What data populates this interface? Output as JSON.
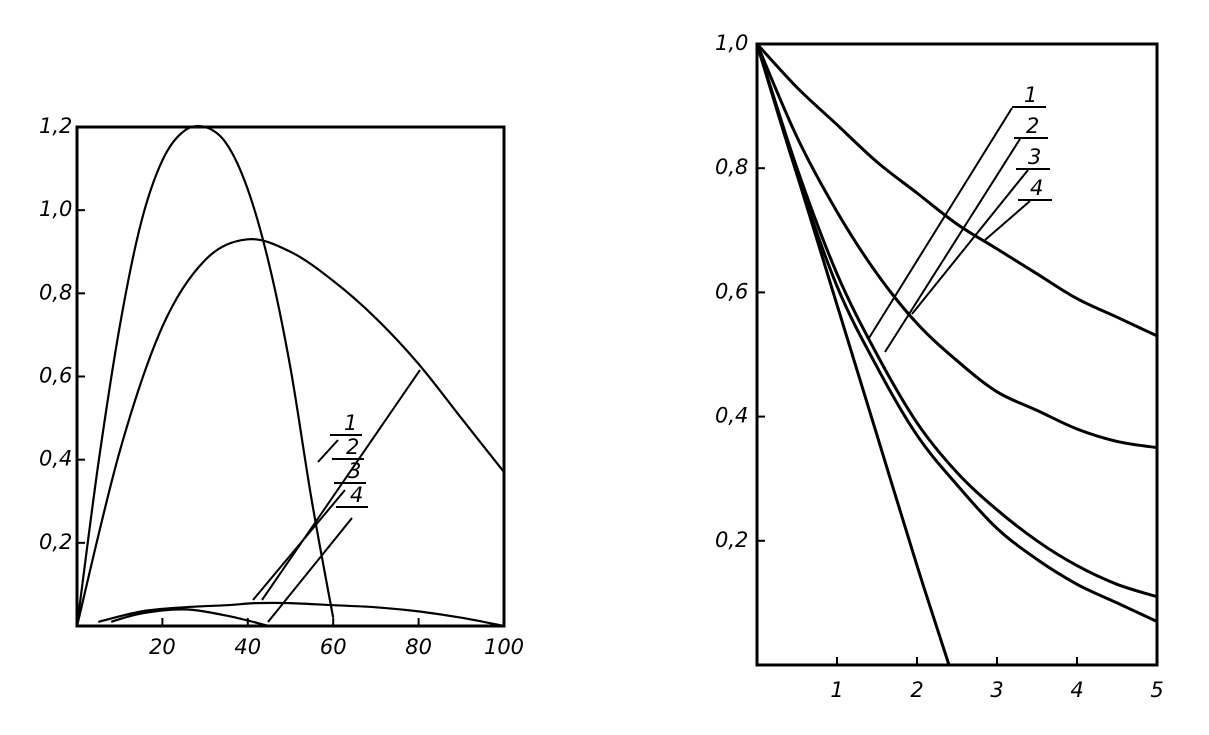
{
  "chart_data": [
    {
      "type": "line",
      "title": "",
      "xlabel": "",
      "ylabel": "",
      "xlim": [
        0,
        100
      ],
      "ylim": [
        0,
        1.2
      ],
      "x_ticks": [
        20,
        40,
        60,
        80,
        100
      ],
      "x_tick_labels": [
        "20",
        "40",
        "60",
        "80",
        "100"
      ],
      "y_ticks": [
        0.2,
        0.4,
        0.6,
        0.8,
        1.0,
        1.2
      ],
      "y_tick_labels": [
        "0,2",
        "0,4",
        "0,6",
        "0,8",
        "1,0",
        "1,2"
      ],
      "grid": false,
      "legend_labels": [
        "1",
        "2",
        "3",
        "4"
      ],
      "series": [
        {
          "x": [
            0,
            5,
            10,
            15,
            20,
            25,
            30,
            35,
            40,
            45,
            50,
            55,
            60
          ],
          "y": [
            0,
            0.39,
            0.72,
            0.97,
            1.12,
            1.19,
            1.2,
            1.16,
            1.05,
            0.87,
            0.62,
            0.3,
            0.02
          ]
        },
        {
          "x": [
            0,
            10,
            20,
            30,
            40,
            50,
            60,
            70,
            80,
            90,
            100
          ],
          "y": [
            0,
            0.42,
            0.72,
            0.88,
            0.93,
            0.9,
            0.83,
            0.74,
            0.63,
            0.5,
            0.37
          ]
        },
        {
          "x": [
            5,
            15,
            25,
            35,
            42,
            50,
            60,
            70,
            80,
            90,
            100
          ],
          "y": [
            0.01,
            0.035,
            0.045,
            0.05,
            0.055,
            0.055,
            0.05,
            0.045,
            0.035,
            0.02,
            0
          ]
        },
        {
          "x": [
            8,
            15,
            25,
            35,
            45
          ],
          "y": [
            0.01,
            0.03,
            0.04,
            0.025,
            0
          ]
        }
      ]
    },
    {
      "type": "line",
      "title": "",
      "xlabel": "",
      "ylabel": "",
      "xlim": [
        0,
        5
      ],
      "ylim": [
        0,
        1.0
      ],
      "x_ticks": [
        1,
        2,
        3,
        4,
        5
      ],
      "x_tick_labels": [
        "1",
        "2",
        "3",
        "4",
        "5"
      ],
      "y_ticks": [
        0.2,
        0.4,
        0.6,
        0.8,
        1.0
      ],
      "y_tick_labels": [
        "0,2",
        "0,4",
        "0,6",
        "0,8",
        "1,0"
      ],
      "grid": false,
      "legend_labels": [
        "1",
        "2",
        "3",
        "4"
      ],
      "series": [
        {
          "x": [
            0,
            0.5,
            1,
            1.5,
            2,
            2.5,
            3,
            3.5,
            4,
            4.5,
            5
          ],
          "y": [
            1.0,
            0.93,
            0.87,
            0.81,
            0.76,
            0.71,
            0.67,
            0.63,
            0.59,
            0.56,
            0.53
          ]
        },
        {
          "x": [
            0,
            0.5,
            1,
            1.5,
            2,
            2.5,
            3,
            3.5,
            4,
            4.5,
            5
          ],
          "y": [
            1.0,
            0.85,
            0.73,
            0.63,
            0.55,
            0.49,
            0.44,
            0.41,
            0.38,
            0.36,
            0.35
          ]
        },
        {
          "x": [
            0,
            0.5,
            1,
            1.5,
            2,
            2.5,
            3,
            3.5,
            4,
            4.5,
            5
          ],
          "y": [
            1.0,
            0.8,
            0.63,
            0.5,
            0.39,
            0.31,
            0.25,
            0.2,
            0.16,
            0.13,
            0.11
          ]
        },
        {
          "x": [
            0,
            0.5,
            1,
            1.5,
            2,
            2.5,
            3,
            3.5,
            4,
            4.5,
            5
          ],
          "y": [
            1.0,
            0.79,
            0.61,
            0.48,
            0.37,
            0.29,
            0.22,
            0.17,
            0.13,
            0.1,
            0.07
          ]
        },
        {
          "x": [
            0,
            0.5,
            1,
            1.5,
            2,
            2.4
          ],
          "y": [
            1.0,
            0.79,
            0.58,
            0.37,
            0.16,
            0.0
          ]
        }
      ]
    }
  ]
}
